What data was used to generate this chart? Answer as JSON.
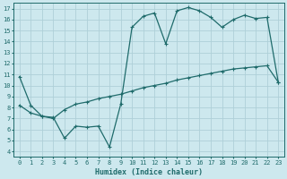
{
  "xlabel": "Humidex (Indice chaleur)",
  "bg_color": "#cde8ee",
  "grid_color": "#aed0d8",
  "line_color": "#1f6b6b",
  "spine_color": "#1f6b6b",
  "xlim": [
    -0.5,
    23.5
  ],
  "ylim": [
    3.5,
    17.5
  ],
  "xticks": [
    0,
    1,
    2,
    3,
    4,
    5,
    6,
    7,
    8,
    9,
    10,
    11,
    12,
    13,
    14,
    15,
    16,
    17,
    18,
    19,
    20,
    21,
    22,
    23
  ],
  "yticks": [
    4,
    5,
    6,
    7,
    8,
    9,
    10,
    11,
    12,
    13,
    14,
    15,
    16,
    17
  ],
  "upper_x": [
    0,
    1,
    2,
    3,
    4,
    5,
    6,
    7,
    8,
    9,
    10,
    11,
    12,
    13,
    14,
    15,
    16,
    17,
    18,
    19,
    20,
    21,
    22,
    23
  ],
  "upper_y": [
    10.8,
    8.2,
    7.2,
    7.1,
    5.2,
    6.3,
    6.2,
    6.3,
    4.4,
    8.3,
    15.3,
    16.3,
    16.6,
    13.8,
    16.8,
    17.1,
    16.8,
    16.2,
    15.3,
    16.0,
    16.4,
    16.1,
    16.2,
    10.3
  ],
  "lower_x": [
    0,
    1,
    2,
    3,
    4,
    5,
    6,
    7,
    8,
    9,
    10,
    11,
    12,
    13,
    14,
    15,
    16,
    17,
    18,
    19,
    20,
    21,
    22,
    23
  ],
  "lower_y": [
    8.2,
    7.5,
    7.2,
    7.0,
    7.8,
    8.3,
    8.5,
    8.8,
    9.0,
    9.2,
    9.5,
    9.8,
    10.0,
    10.2,
    10.5,
    10.7,
    10.9,
    11.1,
    11.3,
    11.5,
    11.6,
    11.7,
    11.8,
    10.3
  ],
  "xlabel_fontsize": 6,
  "tick_fontsize": 5,
  "linewidth": 0.9,
  "markersize": 2.2
}
